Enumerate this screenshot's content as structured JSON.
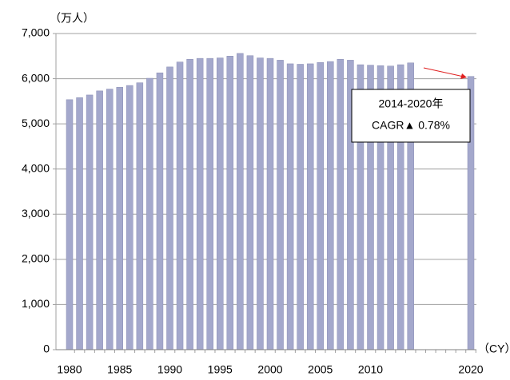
{
  "chart_data": {
    "type": "bar",
    "y_label": "（万人）",
    "x_label": "（CY）",
    "annotation": [
      "2014-2020年",
      "CAGR▲ 0.78%"
    ],
    "categories": [
      "1980",
      null,
      null,
      null,
      null,
      "1985",
      null,
      null,
      null,
      null,
      "1990",
      null,
      null,
      null,
      null,
      "1995",
      null,
      null,
      null,
      null,
      "2000",
      null,
      null,
      null,
      null,
      "2005",
      null,
      null,
      null,
      null,
      "2010",
      null,
      null,
      null,
      null,
      null,
      null,
      null,
      null,
      null,
      "2020"
    ],
    "values": [
      5536,
      5580,
      5640,
      5730,
      5770,
      5810,
      5850,
      5910,
      6010,
      6130,
      6260,
      6370,
      6430,
      6450,
      6450,
      6460,
      6500,
      6560,
      6510,
      6460,
      6450,
      6410,
      6330,
      6320,
      6330,
      6360,
      6380,
      6430,
      6410,
      6310,
      6300,
      6290,
      6280,
      6310,
      6350,
      null,
      null,
      null,
      null,
      null,
      6050
    ],
    "color": "#a4a8cc",
    "ylim": [
      0,
      7000
    ],
    "yticks": [
      0,
      {
        "value": 1000,
        "label": "1,000"
      },
      {
        "value": 2000,
        "label": "2,000"
      },
      {
        "value": 3000,
        "label": "3,000"
      },
      {
        "value": 4000,
        "label": "4,000"
      },
      {
        "value": 5000,
        "label": "5,000"
      },
      {
        "value": 6000,
        "label": "6,000"
      },
      {
        "value": 7000,
        "label": "7,000"
      }
    ],
    "grid": true
  }
}
